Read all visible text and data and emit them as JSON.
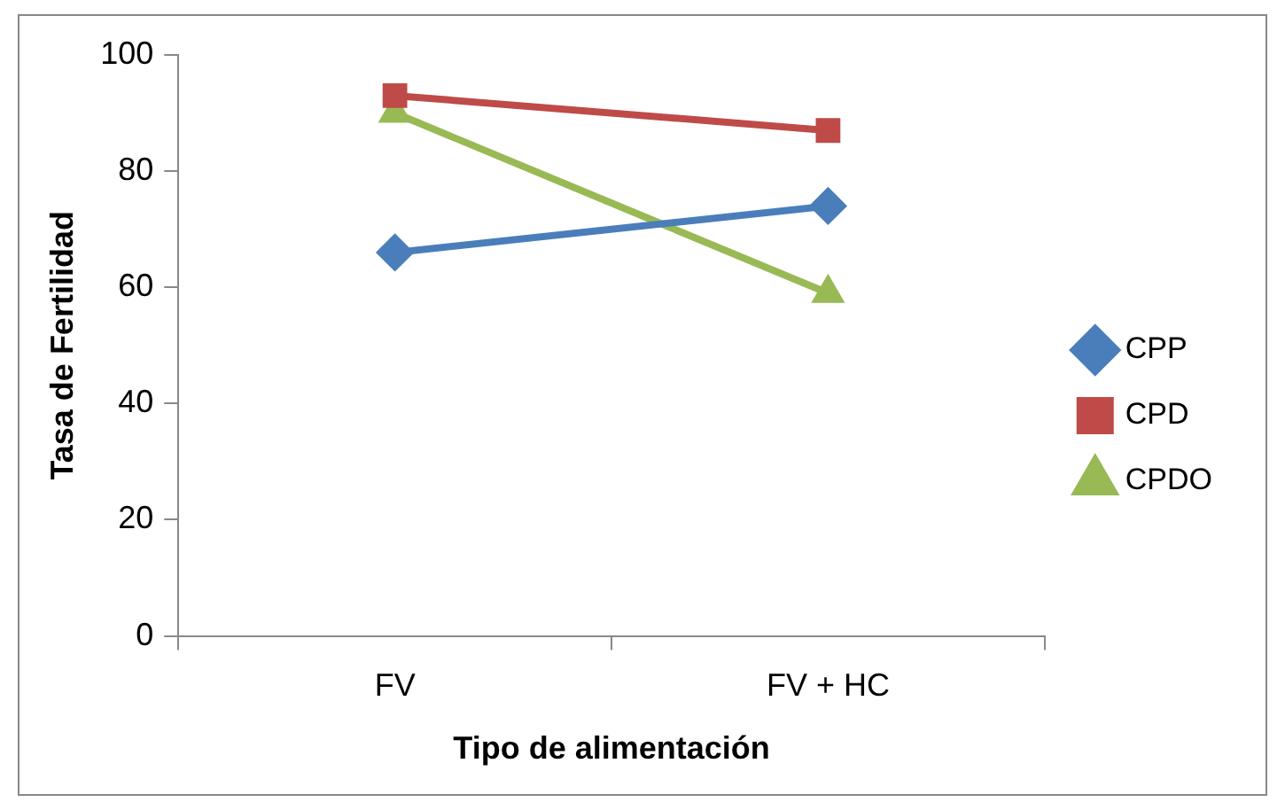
{
  "chart_data": {
    "type": "line",
    "xlabel": "Tipo de alimentación",
    "ylabel": "Tasa de Fertilidad",
    "categories": [
      "FV",
      "FV + HC"
    ],
    "series": [
      {
        "name": "CPP",
        "color": "#4a7ebb",
        "marker": "diamond",
        "values": [
          66,
          74
        ]
      },
      {
        "name": "CPD",
        "color": "#be4b48",
        "marker": "square",
        "values": [
          93,
          87
        ]
      },
      {
        "name": "CPDO",
        "color": "#98b954",
        "marker": "triangle",
        "values": [
          90,
          59
        ]
      }
    ],
    "ylim": [
      0,
      100
    ],
    "yticks": [
      0,
      20,
      40,
      60,
      80,
      100
    ],
    "legend": "right"
  }
}
